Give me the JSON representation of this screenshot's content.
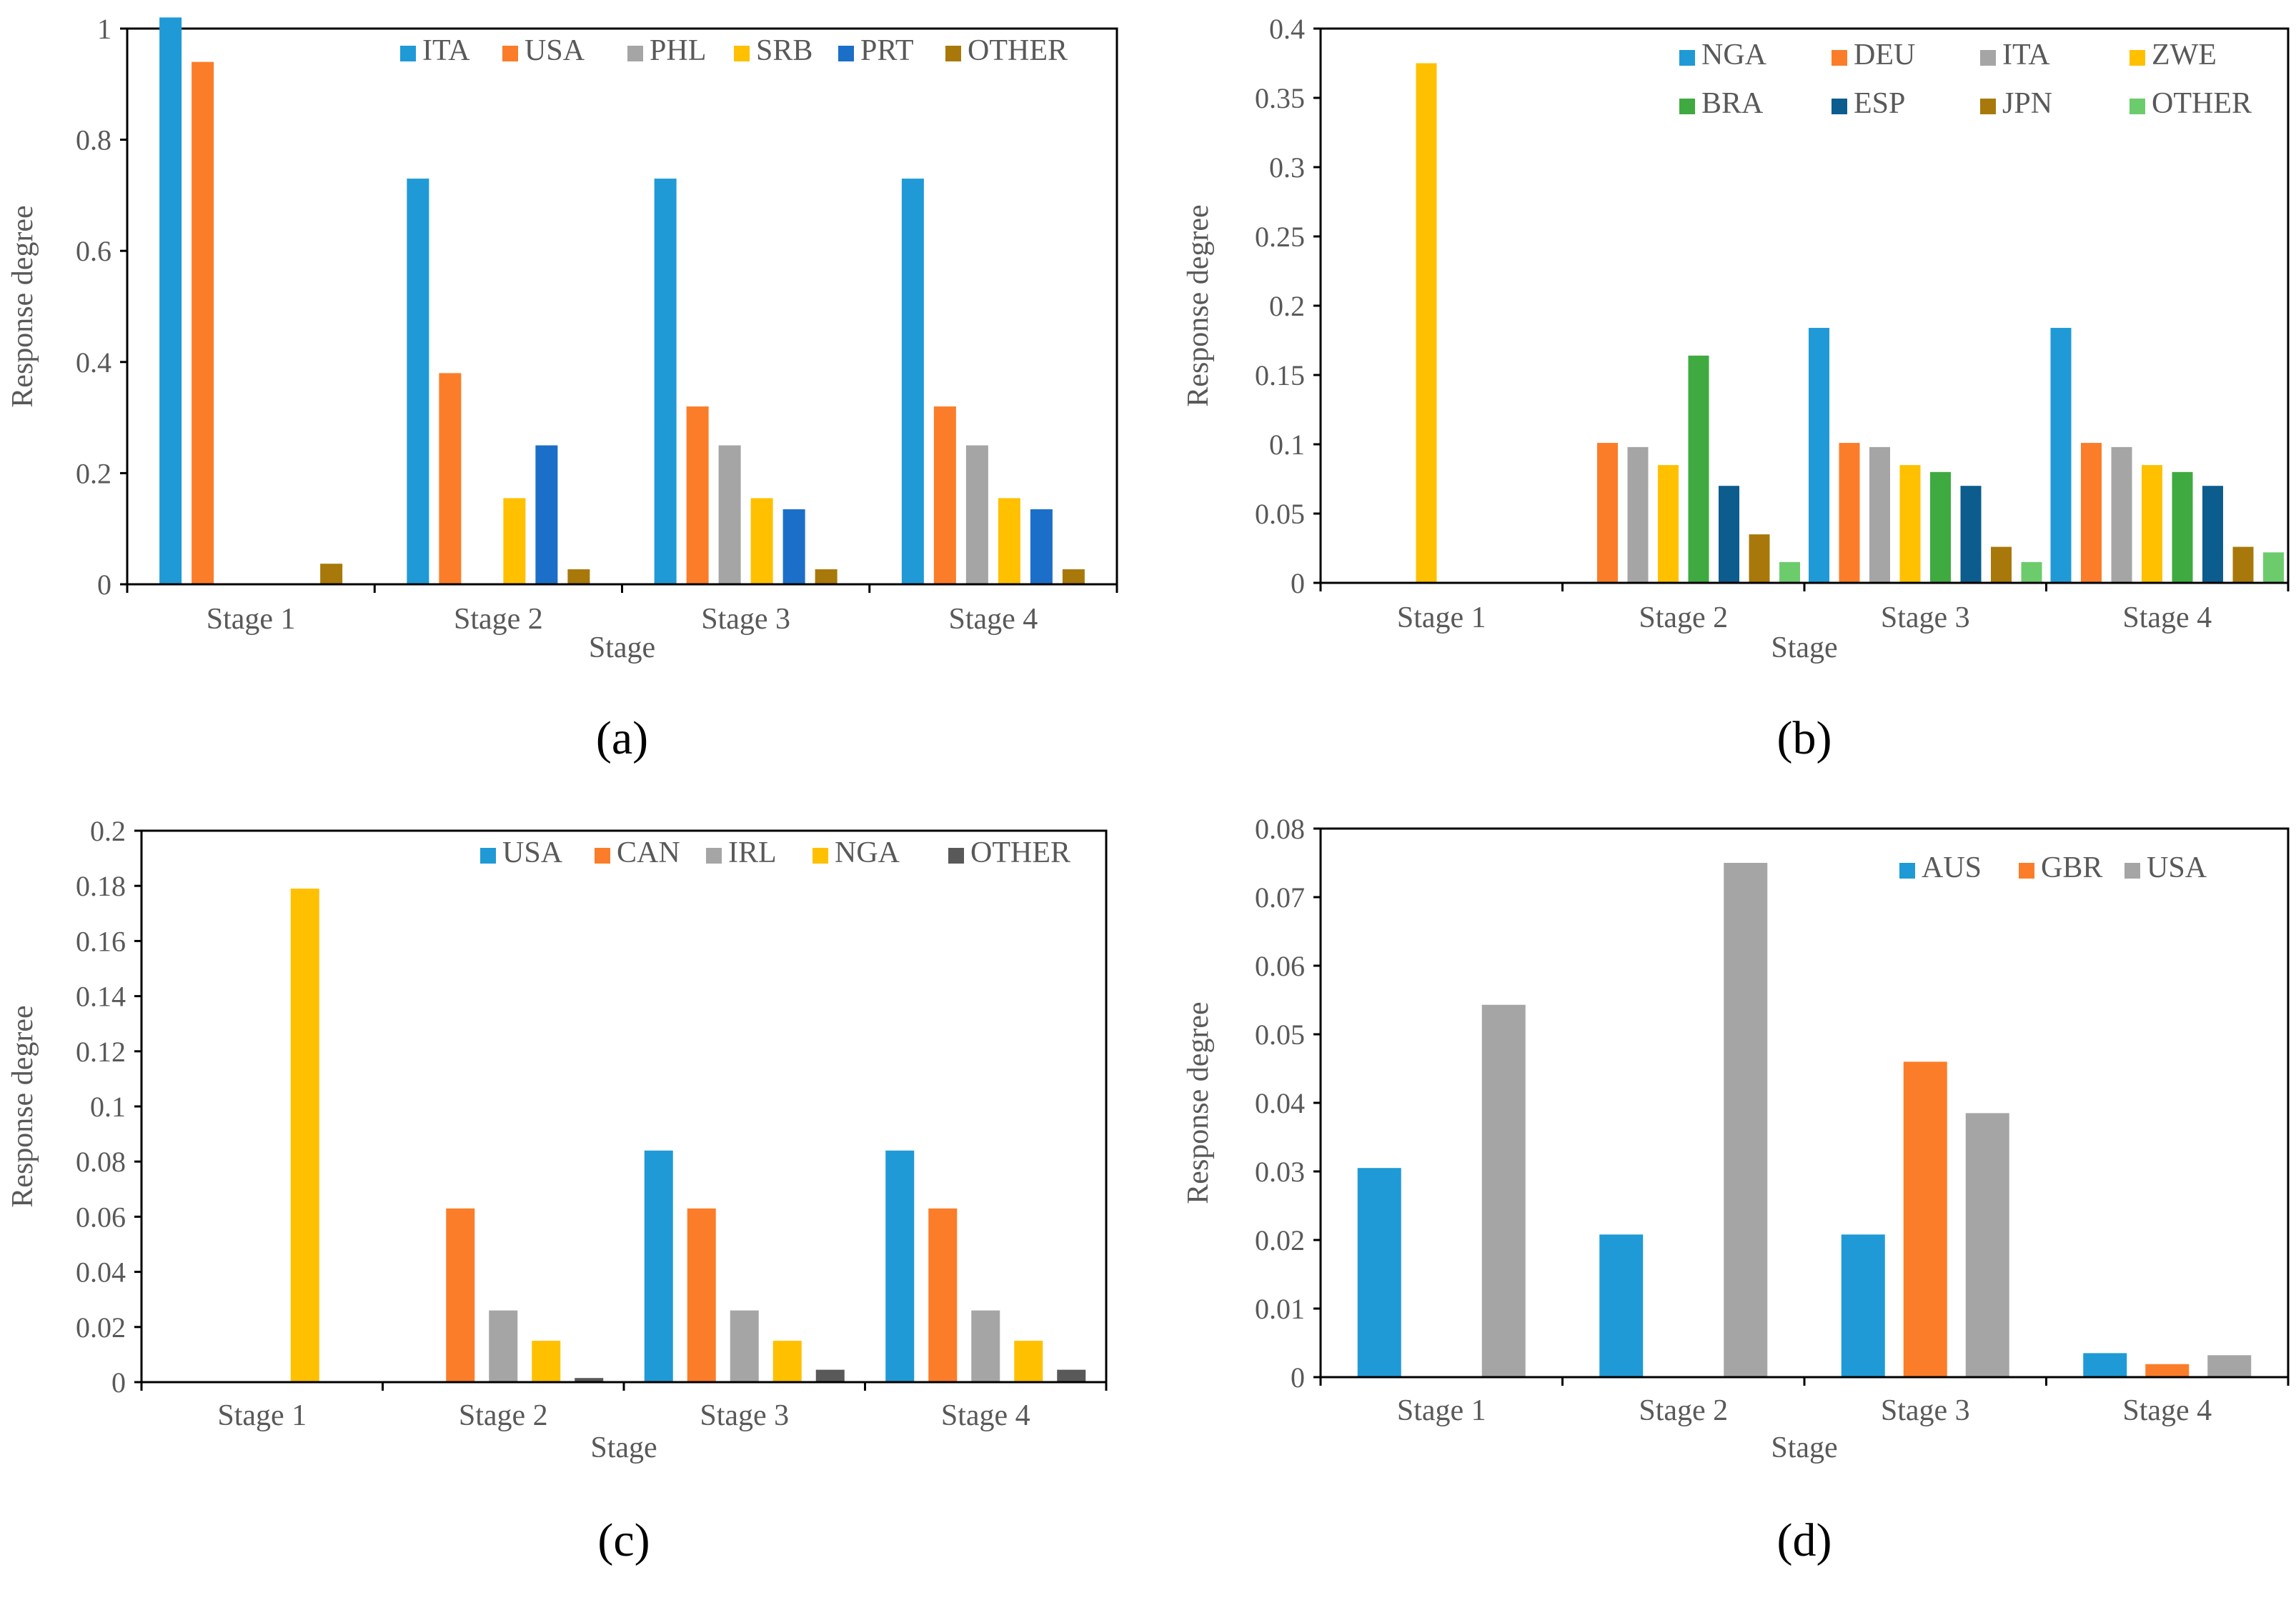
{
  "colors": {
    "blue": "#1f9ad6",
    "orange": "#fb7d29",
    "gray": "#a5a5a5",
    "yellow": "#ffc000",
    "dark_blue": "#1b6fc8",
    "brown": "#a8790a",
    "green": "#3faa3f",
    "navy": "#0c5c8e",
    "light_green": "#6ccc6c",
    "dark_gray": "#595959",
    "axis": "#000000"
  },
  "chart_data": [
    {
      "type": "bar",
      "panel_label": "(a)",
      "xlabel": "Stage",
      "ylabel": "Response degree",
      "ylim": [
        0,
        1.0
      ],
      "yticks": [
        0,
        0.2,
        0.4,
        0.6,
        0.8,
        1
      ],
      "ytick_labels": [
        "0",
        "0.2",
        "0.4",
        "0.6",
        "0.8",
        "1"
      ],
      "categories": [
        "Stage 1",
        "Stage 2",
        "Stage 3",
        "Stage 4"
      ],
      "legend_placement": "top-right",
      "series": [
        {
          "name": "ITA",
          "color": "#1f9ad6",
          "values": [
            1.02,
            0.73,
            0.73,
            0.73
          ]
        },
        {
          "name": "USA",
          "color": "#fb7d29",
          "values": [
            0.94,
            0.38,
            0.32,
            0.32
          ]
        },
        {
          "name": "PHL",
          "color": "#a5a5a5",
          "values": [
            0,
            0,
            0.25,
            0.25
          ]
        },
        {
          "name": "SRB",
          "color": "#ffc000",
          "values": [
            0,
            0.155,
            0.155,
            0.155
          ]
        },
        {
          "name": "PRT",
          "color": "#1b6fc8",
          "values": [
            0,
            0.25,
            0.135,
            0.135
          ]
        },
        {
          "name": "OTHER",
          "color": "#a8790a",
          "values": [
            0.037,
            0.027,
            0.027,
            0.027
          ]
        }
      ]
    },
    {
      "type": "bar",
      "panel_label": "(b)",
      "xlabel": "Stage",
      "ylabel": "Response degree",
      "ylim": [
        0,
        0.4
      ],
      "yticks": [
        0,
        0.05,
        0.1,
        0.15,
        0.2,
        0.25,
        0.3,
        0.35,
        0.4
      ],
      "ytick_labels": [
        "0",
        "0.05",
        "0.1",
        "0.15",
        "0.2",
        "0.25",
        "0.3",
        "0.35",
        "0.4"
      ],
      "categories": [
        "Stage 1",
        "Stage 2",
        "Stage 3",
        "Stage 4"
      ],
      "legend_placement": "top-right",
      "series": [
        {
          "name": "NGA",
          "color": "#1f9ad6",
          "values": [
            0,
            0,
            0.184,
            0.184
          ]
        },
        {
          "name": "DEU",
          "color": "#fb7d29",
          "values": [
            0,
            0.101,
            0.101,
            0.101
          ]
        },
        {
          "name": "ITA",
          "color": "#a5a5a5",
          "values": [
            0,
            0.098,
            0.098,
            0.098
          ]
        },
        {
          "name": "ZWE",
          "color": "#ffc000",
          "values": [
            0.375,
            0.085,
            0.085,
            0.085
          ]
        },
        {
          "name": "BRA",
          "color": "#3faa3f",
          "values": [
            0,
            0.164,
            0.08,
            0.08
          ]
        },
        {
          "name": "ESP",
          "color": "#0c5c8e",
          "values": [
            0,
            0.07,
            0.07,
            0.07
          ]
        },
        {
          "name": "JPN",
          "color": "#a8790a",
          "values": [
            0,
            0.035,
            0.026,
            0.026
          ]
        },
        {
          "name": "OTHER",
          "color": "#6ccc6c",
          "values": [
            0,
            0.015,
            0.015,
            0.022
          ]
        }
      ]
    },
    {
      "type": "bar",
      "panel_label": "(c)",
      "xlabel": "Stage",
      "ylabel": "Response degree",
      "ylim": [
        0,
        0.2
      ],
      "yticks": [
        0,
        0.02,
        0.04,
        0.06,
        0.08,
        0.1,
        0.12,
        0.14,
        0.16,
        0.18,
        0.2
      ],
      "ytick_labels": [
        "0",
        "0.02",
        "0.04",
        "0.06",
        "0.08",
        "0.1",
        "0.12",
        "0.14",
        "0.16",
        "0.18",
        "0.2"
      ],
      "categories": [
        "Stage 1",
        "Stage 2",
        "Stage 3",
        "Stage 4"
      ],
      "legend_placement": "top-right",
      "series": [
        {
          "name": "USA",
          "color": "#1f9ad6",
          "values": [
            0,
            0,
            0.084,
            0.084
          ]
        },
        {
          "name": "CAN",
          "color": "#fb7d29",
          "values": [
            0,
            0.063,
            0.063,
            0.063
          ]
        },
        {
          "name": "IRL",
          "color": "#a5a5a5",
          "values": [
            0,
            0.026,
            0.026,
            0.026
          ]
        },
        {
          "name": "NGA",
          "color": "#ffc000",
          "values": [
            0.179,
            0.015,
            0.015,
            0.015
          ]
        },
        {
          "name": "OTHER",
          "color": "#595959",
          "values": [
            0,
            0.0015,
            0.0045,
            0.0045
          ]
        }
      ]
    },
    {
      "type": "bar",
      "panel_label": "(d)",
      "xlabel": "Stage",
      "ylabel": "Response degree",
      "ylim": [
        0,
        0.08
      ],
      "yticks": [
        0,
        0.01,
        0.02,
        0.03,
        0.04,
        0.05,
        0.06,
        0.07,
        0.08
      ],
      "ytick_labels": [
        "0",
        "0.01",
        "0.02",
        "0.03",
        "0.04",
        "0.05",
        "0.06",
        "0.07",
        "0.08"
      ],
      "categories": [
        "Stage 1",
        "Stage 2",
        "Stage 3",
        "Stage 4"
      ],
      "legend_placement": "top-right",
      "series": [
        {
          "name": "AUS",
          "color": "#1f9ad6",
          "values": [
            0.0305,
            0.0208,
            0.0208,
            0.0035
          ]
        },
        {
          "name": "GBR",
          "color": "#fb7d29",
          "values": [
            0,
            0,
            0.046,
            0.0019
          ]
        },
        {
          "name": "USA",
          "color": "#a5a5a5",
          "values": [
            0.0543,
            0.075,
            0.0385,
            0.0032
          ]
        }
      ]
    }
  ]
}
